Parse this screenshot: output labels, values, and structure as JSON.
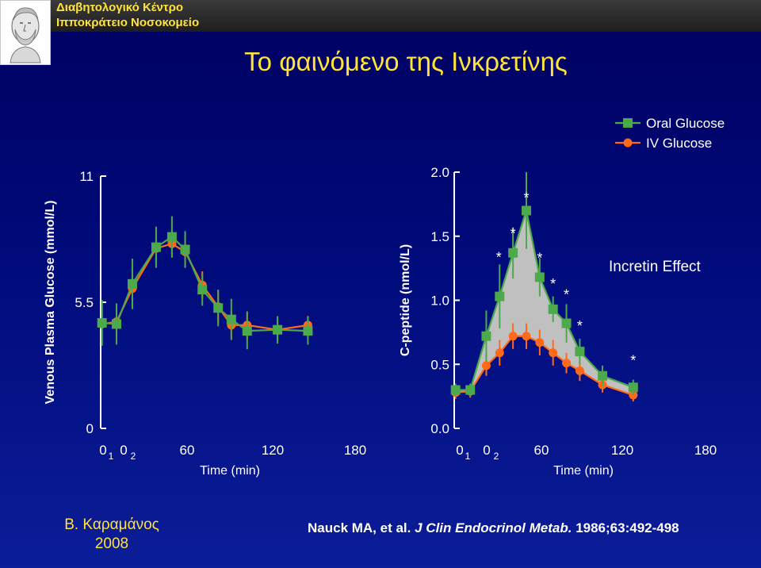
{
  "header": {
    "hospital_line1": "Διαβητολογικό Κέντρο",
    "hospital_line2": "Ιπποκράτειο Νοσοκομείο",
    "logo_icon": "hippocrates-bust-icon",
    "title": "Το φαινόμενο της Ινκρετίνης"
  },
  "colors": {
    "oral": "#4caa4c",
    "iv": "#ff6a1a",
    "axis": "#ffffff",
    "fill": "#c0c0c0",
    "title": "#ffe23a"
  },
  "legend": {
    "placement": "top-right",
    "oral_label": "Oral Glucose",
    "iv_label": "IV Glucose"
  },
  "chart_data": [
    {
      "type": "line",
      "ylabel": "Venous Plasma Glucose (mmol/L)",
      "xlabel": "Time (min)",
      "y_ticks": [
        "0",
        "5.5",
        "11"
      ],
      "y_tick_values": [
        0,
        5.5,
        11
      ],
      "ylim": [
        0,
        11
      ],
      "x_tick_labels": [
        "0",
        "1",
        "0",
        "2",
        "60",
        "120",
        "180"
      ],
      "xlim": [
        -14,
        186
      ],
      "series": [
        {
          "name": "Oral Glucose",
          "marker": "square",
          "x": [
            -13,
            -2,
            10,
            28,
            40,
            50,
            63,
            75,
            85,
            97,
            120,
            143
          ],
          "y": [
            4.6,
            4.55,
            6.3,
            7.9,
            8.35,
            7.8,
            6.05,
            5.25,
            4.75,
            4.25,
            4.3,
            4.25
          ],
          "err": [
            1.0,
            0.9,
            1.1,
            0.9,
            0.9,
            0.8,
            0.7,
            0.8,
            0.9,
            0.8,
            0.6,
            0.6
          ]
        },
        {
          "name": "IV Glucose",
          "marker": "circle",
          "x": [
            -13,
            -2,
            10,
            28,
            40,
            50,
            63,
            75,
            85,
            97,
            120,
            143
          ],
          "y": [
            4.55,
            4.65,
            6.1,
            7.85,
            8.05,
            7.7,
            6.25,
            5.3,
            4.5,
            4.5,
            4.3,
            4.5
          ],
          "err": [
            0.9,
            0.7,
            0.8,
            0.5,
            0.6,
            0.7,
            0.6,
            0.7,
            0.6,
            0.6,
            0.5,
            0.4
          ]
        }
      ]
    },
    {
      "type": "line",
      "ylabel": "C-peptide (nmol/L)",
      "xlabel": "Time (min)",
      "y_ticks": [
        "0.0",
        "0.5",
        "1.0",
        "1.5",
        "2.0"
      ],
      "y_tick_values": [
        0,
        0.5,
        1.0,
        1.5,
        2.0
      ],
      "ylim": [
        0,
        2.0
      ],
      "x_tick_labels": [
        "0",
        "1",
        "0",
        "2",
        "60",
        "120",
        "180"
      ],
      "xlim": [
        -14,
        186
      ],
      "annotation": "Incretin Effect",
      "significance_marks": [
        "*",
        "*",
        "*",
        "*",
        "*",
        "*",
        "*",
        "*"
      ],
      "series": [
        {
          "name": "Oral Glucose",
          "marker": "square",
          "x": [
            -13,
            -2,
            10,
            20,
            30,
            40,
            50,
            60,
            70,
            80,
            97,
            120
          ],
          "y": [
            0.3,
            0.3,
            0.72,
            1.03,
            1.37,
            1.7,
            1.18,
            0.93,
            0.82,
            0.6,
            0.41,
            0.32
          ],
          "err": [
            0.05,
            0.05,
            0.2,
            0.25,
            0.2,
            0.3,
            0.15,
            0.1,
            0.15,
            0.1,
            0.08,
            0.06
          ]
        },
        {
          "name": "IV Glucose",
          "marker": "circle",
          "x": [
            -13,
            -2,
            10,
            20,
            30,
            40,
            50,
            60,
            70,
            80,
            97,
            120
          ],
          "y": [
            0.28,
            0.29,
            0.49,
            0.59,
            0.72,
            0.72,
            0.67,
            0.59,
            0.51,
            0.45,
            0.34,
            0.26
          ],
          "err": [
            0.05,
            0.05,
            0.08,
            0.1,
            0.1,
            0.1,
            0.1,
            0.1,
            0.08,
            0.08,
            0.06,
            0.05
          ]
        }
      ]
    }
  ],
  "footer": {
    "author": "Β. Καραμάνος",
    "year": "2008",
    "ref_authors": "Nauck MA, et al. ",
    "ref_journal": "J Clin Endocrinol Metab.",
    "ref_details": " 1986;63:492-498"
  }
}
